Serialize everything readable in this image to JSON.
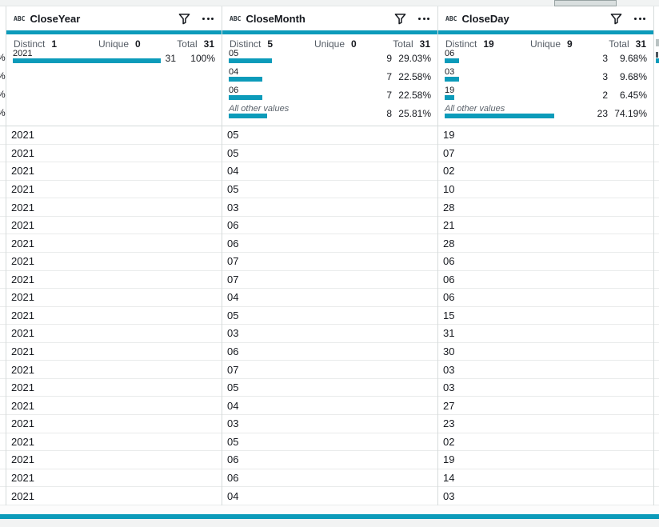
{
  "colors": {
    "accent": "#0c9bba"
  },
  "labels": {
    "distinct": "Distinct",
    "unique": "Unique",
    "total": "Total"
  },
  "columns": [
    {
      "type_label": "ABC",
      "name": "CloseYear",
      "distinct": "1",
      "unique": "0",
      "total": "31",
      "values": [
        {
          "label": "2021",
          "count": "31",
          "pct": "100%",
          "pct_num": 100,
          "other": false
        }
      ]
    },
    {
      "type_label": "ABC",
      "name": "CloseMonth",
      "distinct": "5",
      "unique": "0",
      "total": "31",
      "values": [
        {
          "label": "05",
          "count": "9",
          "pct": "29.03%",
          "pct_num": 29.03,
          "other": false
        },
        {
          "label": "04",
          "count": "7",
          "pct": "22.58%",
          "pct_num": 22.58,
          "other": false
        },
        {
          "label": "06",
          "count": "7",
          "pct": "22.58%",
          "pct_num": 22.58,
          "other": false
        },
        {
          "label": "All other values",
          "count": "8",
          "pct": "25.81%",
          "pct_num": 25.81,
          "other": true
        }
      ]
    },
    {
      "type_label": "ABC",
      "name": "CloseDay",
      "distinct": "19",
      "unique": "9",
      "total": "31",
      "values": [
        {
          "label": "06",
          "count": "3",
          "pct": "9.68%",
          "pct_num": 9.68,
          "other": false
        },
        {
          "label": "03",
          "count": "3",
          "pct": "9.68%",
          "pct_num": 9.68,
          "other": false
        },
        {
          "label": "19",
          "count": "2",
          "pct": "6.45%",
          "pct_num": 6.45,
          "other": false
        },
        {
          "label": "All other values",
          "count": "23",
          "pct": "74.19%",
          "pct_num": 74.19,
          "other": true
        }
      ]
    }
  ],
  "left_clip": {
    "percent_fragments": [
      "%",
      "%",
      "%",
      "%"
    ]
  },
  "table_rows": [
    [
      "2021",
      "05",
      "19"
    ],
    [
      "2021",
      "05",
      "07"
    ],
    [
      "2021",
      "04",
      "02"
    ],
    [
      "2021",
      "05",
      "10"
    ],
    [
      "2021",
      "03",
      "28"
    ],
    [
      "2021",
      "06",
      "21"
    ],
    [
      "2021",
      "06",
      "28"
    ],
    [
      "2021",
      "07",
      "06"
    ],
    [
      "2021",
      "07",
      "06"
    ],
    [
      "2021",
      "04",
      "06"
    ],
    [
      "2021",
      "05",
      "15"
    ],
    [
      "2021",
      "03",
      "31"
    ],
    [
      "2021",
      "06",
      "30"
    ],
    [
      "2021",
      "07",
      "03"
    ],
    [
      "2021",
      "05",
      "03"
    ],
    [
      "2021",
      "04",
      "27"
    ],
    [
      "2021",
      "03",
      "23"
    ],
    [
      "2021",
      "05",
      "02"
    ],
    [
      "2021",
      "06",
      "19"
    ],
    [
      "2021",
      "06",
      "14"
    ],
    [
      "2021",
      "04",
      "03"
    ]
  ]
}
